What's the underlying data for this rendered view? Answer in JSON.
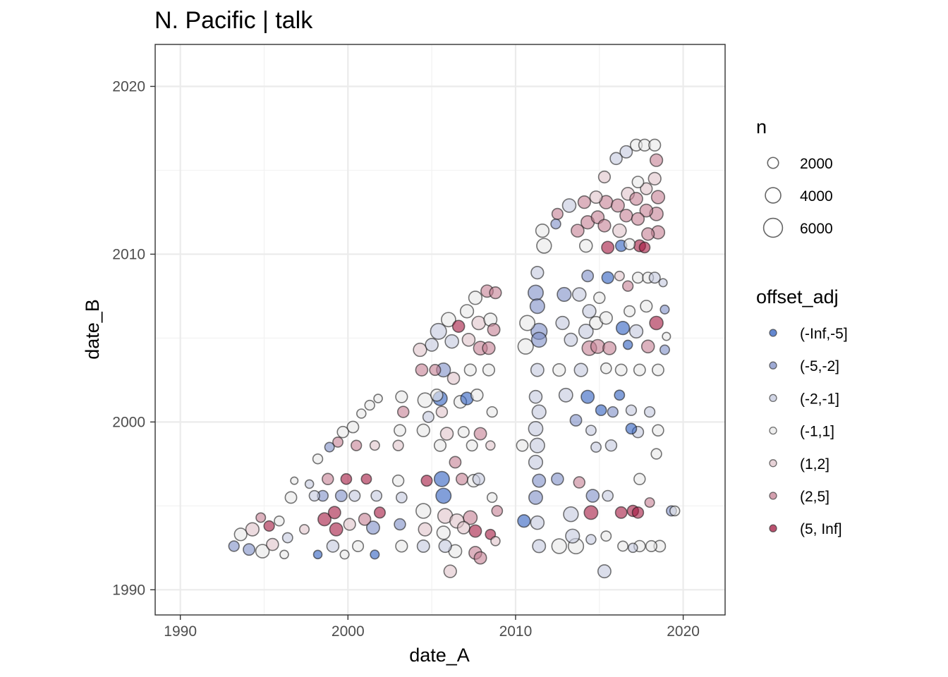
{
  "chart_data": {
    "type": "scatter",
    "title": "N. Pacific | talk",
    "xlabel": "date_A",
    "ylabel": "date_B",
    "xlim": [
      1988.5,
      2022.5
    ],
    "ylim": [
      1988.5,
      2022.5
    ],
    "x_ticks": [
      1990,
      2000,
      2010,
      2020
    ],
    "y_ticks": [
      1990,
      2000,
      2010,
      2020
    ],
    "x_tick_labels": [
      "1990",
      "2000",
      "2010",
      "2020"
    ],
    "y_tick_labels": [
      "1990",
      "2000",
      "2010",
      "2020"
    ],
    "grid": true,
    "legend_position": "right",
    "size_legend": {
      "title": "n",
      "labels": [
        "2000",
        "4000",
        "6000"
      ],
      "values": [
        2000,
        4000,
        6000
      ]
    },
    "color_legend": {
      "title": "offset_adj",
      "labels": [
        "(-Inf,-5]",
        "(-5,-2]",
        "(-2,-1]",
        "(-1,1]",
        "(1,2]",
        "(2,5]",
        "(5, Inf]"
      ],
      "colors": [
        "#2f5fbf",
        "#7d8ec6",
        "#c3c8de",
        "#e8e8e8",
        "#dfc3ca",
        "#c47f93",
        "#a3173f"
      ]
    },
    "points": [
      [
        1993.2,
        1992.6,
        1,
        1800
      ],
      [
        1993.6,
        1993.3,
        3,
        2600
      ],
      [
        1994.1,
        1992.4,
        1,
        2200
      ],
      [
        1994.3,
        1993.6,
        4,
        2900
      ],
      [
        1994.8,
        1994.3,
        5,
        1500
      ],
      [
        1994.9,
        1992.3,
        3,
        3000
      ],
      [
        1995.3,
        1993.8,
        6,
        1800
      ],
      [
        1995.5,
        1992.7,
        4,
        2400
      ],
      [
        1995.9,
        1994.1,
        3,
        1600
      ],
      [
        1996.2,
        1992.1,
        3,
        1200
      ],
      [
        1996.4,
        1993.1,
        2,
        1700
      ],
      [
        1996.6,
        1995.5,
        3,
        2200
      ],
      [
        1996.8,
        1996.5,
        3,
        900
      ],
      [
        1997.4,
        1993.6,
        4,
        1500
      ],
      [
        1997.7,
        1996.3,
        2,
        1200
      ],
      [
        1998.0,
        1995.6,
        2,
        1800
      ],
      [
        1998.2,
        1992.1,
        0,
        1200
      ],
      [
        1998.5,
        1995.6,
        1,
        1900
      ],
      [
        1998.8,
        1996.6,
        5,
        2100
      ],
      [
        1998.6,
        1994.2,
        6,
        2800
      ],
      [
        1998.2,
        1997.8,
        3,
        1600
      ],
      [
        1998.9,
        1998.5,
        1,
        1500
      ],
      [
        1999.2,
        1994.6,
        6,
        2500
      ],
      [
        1999.3,
        1993.6,
        6,
        2800
      ],
      [
        1999.1,
        1992.6,
        2,
        2400
      ],
      [
        1999.4,
        1998.8,
        5,
        1700
      ],
      [
        1999.7,
        1999.4,
        3,
        2100
      ],
      [
        1999.9,
        1996.6,
        6,
        1900
      ],
      [
        1999.6,
        1995.6,
        1,
        2200
      ],
      [
        1999.8,
        1992.1,
        3,
        1300
      ],
      [
        2000.1,
        1993.9,
        4,
        2300
      ],
      [
        2000.3,
        1999.7,
        3,
        2200
      ],
      [
        2000.5,
        1998.6,
        5,
        1800
      ],
      [
        2000.4,
        1995.6,
        2,
        2000
      ],
      [
        2000.6,
        1992.6,
        3,
        2000
      ],
      [
        2000.8,
        2000.5,
        3,
        1400
      ],
      [
        2001.0,
        1994.2,
        5,
        2400
      ],
      [
        2001.1,
        1996.6,
        6,
        1700
      ],
      [
        2001.3,
        2001.0,
        3,
        1600
      ],
      [
        2001.5,
        1993.7,
        1,
        2800
      ],
      [
        2001.6,
        1992.1,
        0,
        1300
      ],
      [
        2001.7,
        1995.6,
        2,
        1900
      ],
      [
        2001.6,
        1998.6,
        4,
        1500
      ],
      [
        2001.8,
        2001.4,
        3,
        1200
      ],
      [
        2001.9,
        1994.6,
        6,
        2000
      ],
      [
        2003.1,
        1999.5,
        3,
        2200
      ],
      [
        2003.2,
        2001.5,
        3,
        2300
      ],
      [
        2003.0,
        1998.6,
        4,
        1800
      ],
      [
        2003.1,
        1993.9,
        1,
        2100
      ],
      [
        2003.2,
        1992.6,
        3,
        2300
      ],
      [
        2003.0,
        1996.5,
        3,
        2100
      ],
      [
        2003.2,
        1995.5,
        2,
        1900
      ],
      [
        2003.3,
        2000.6,
        5,
        2100
      ],
      [
        2004.3,
        2004.3,
        4,
        2900
      ],
      [
        2004.4,
        2003.1,
        5,
        2400
      ],
      [
        2004.6,
        2001.3,
        3,
        3500
      ],
      [
        2004.5,
        1999.5,
        3,
        2600
      ],
      [
        2004.7,
        1996.5,
        6,
        2000
      ],
      [
        2004.5,
        1994.7,
        3,
        3600
      ],
      [
        2004.6,
        1993.6,
        4,
        2900
      ],
      [
        2004.5,
        1992.6,
        2,
        2500
      ],
      [
        2004.8,
        2000.3,
        2,
        2000
      ],
      [
        2005.0,
        2004.6,
        2,
        2700
      ],
      [
        2005.2,
        2003.1,
        5,
        2000
      ],
      [
        2005.3,
        2001.6,
        3,
        2400
      ],
      [
        2005.6,
        2000.6,
        4,
        2100
      ],
      [
        2005.5,
        1998.6,
        3,
        2300
      ],
      [
        2005.7,
        1995.6,
        0,
        3800
      ],
      [
        2005.6,
        1996.6,
        0,
        3800
      ],
      [
        2005.8,
        1994.4,
        4,
        3600
      ],
      [
        2005.7,
        1993.4,
        3,
        2900
      ],
      [
        2005.8,
        1992.6,
        2,
        2600
      ],
      [
        2005.4,
        2005.4,
        2,
        4200
      ],
      [
        2005.7,
        2003.1,
        1,
        3200
      ],
      [
        2005.5,
        2001.4,
        0,
        3300
      ],
      [
        2005.9,
        1999.3,
        4,
        2700
      ],
      [
        2006.0,
        2006.1,
        3,
        3400
      ],
      [
        2006.2,
        2004.8,
        2,
        3000
      ],
      [
        2006.3,
        2002.6,
        4,
        2400
      ],
      [
        2006.1,
        1991.1,
        4,
        2600
      ],
      [
        2006.4,
        1997.6,
        5,
        2200
      ],
      [
        2006.5,
        1994.1,
        4,
        3300
      ],
      [
        2006.4,
        1992.3,
        3,
        2800
      ],
      [
        2006.6,
        2005.7,
        6,
        2400
      ],
      [
        2006.7,
        2001.2,
        3,
        2600
      ],
      [
        2006.9,
        1999.4,
        3,
        2000
      ],
      [
        2006.8,
        1996.6,
        5,
        2200
      ],
      [
        2006.9,
        1993.7,
        4,
        2500
      ],
      [
        2007.1,
        2006.6,
        3,
        2900
      ],
      [
        2007.2,
        2004.9,
        4,
        2700
      ],
      [
        2007.3,
        2003.1,
        3,
        2300
      ],
      [
        2007.1,
        2001.4,
        0,
        2600
      ],
      [
        2007.4,
        1998.6,
        3,
        2000
      ],
      [
        2007.5,
        1996.5,
        3,
        2600
      ],
      [
        2007.3,
        1994.3,
        5,
        3100
      ],
      [
        2007.6,
        1992.2,
        5,
        2700
      ],
      [
        2007.6,
        2007.4,
        3,
        2900
      ],
      [
        2007.8,
        2005.9,
        4,
        3000
      ],
      [
        2007.9,
        2004.4,
        5,
        3100
      ],
      [
        2007.7,
        2001.6,
        3,
        2400
      ],
      [
        2007.9,
        1999.3,
        5,
        2500
      ],
      [
        2007.8,
        1996.6,
        2,
        2300
      ],
      [
        2007.6,
        1993.5,
        6,
        2500
      ],
      [
        2007.9,
        1991.9,
        5,
        2500
      ],
      [
        2008.3,
        2007.8,
        5,
        2500
      ],
      [
        2008.5,
        2006.1,
        3,
        2800
      ],
      [
        2008.4,
        2004.4,
        5,
        2600
      ],
      [
        2008.4,
        2003.1,
        3,
        2300
      ],
      [
        2008.6,
        2000.6,
        3,
        1800
      ],
      [
        2008.5,
        1998.6,
        4,
        1400
      ],
      [
        2008.6,
        1995.5,
        3,
        1600
      ],
      [
        2008.5,
        1993.3,
        6,
        1700
      ],
      [
        2008.8,
        1992.9,
        4,
        1400
      ],
      [
        2008.9,
        1994.7,
        5,
        1900
      ],
      [
        2008.8,
        2007.7,
        5,
        2300
      ],
      [
        2008.7,
        2005.5,
        5,
        2500
      ],
      [
        2010.4,
        1998.6,
        3,
        2200
      ],
      [
        2010.5,
        1994.1,
        0,
        2600
      ],
      [
        2010.7,
        2005.9,
        3,
        3800
      ],
      [
        2010.6,
        2004.5,
        3,
        3900
      ],
      [
        2011.3,
        2008.9,
        2,
        2600
      ],
      [
        2011.2,
        2007.7,
        1,
        3800
      ],
      [
        2011.3,
        2006.9,
        1,
        3500
      ],
      [
        2011.4,
        2005.4,
        1,
        4300
      ],
      [
        2011.4,
        2004.9,
        1,
        3700
      ],
      [
        2011.3,
        2003.1,
        2,
        2800
      ],
      [
        2011.2,
        2001.5,
        2,
        2700
      ],
      [
        2011.4,
        2000.6,
        2,
        3200
      ],
      [
        2011.2,
        1999.6,
        2,
        3400
      ],
      [
        2011.3,
        1998.6,
        2,
        3500
      ],
      [
        2011.2,
        1997.6,
        2,
        3200
      ],
      [
        2011.4,
        1996.5,
        1,
        2800
      ],
      [
        2011.2,
        1995.5,
        1,
        3100
      ],
      [
        2011.3,
        1994.0,
        2,
        3000
      ],
      [
        2011.4,
        1992.6,
        2,
        2800
      ],
      [
        2011.6,
        2011.4,
        3,
        2900
      ],
      [
        2011.7,
        2010.5,
        3,
        3600
      ],
      [
        2012.4,
        2011.8,
        1,
        1600
      ],
      [
        2012.5,
        2012.4,
        5,
        2000
      ],
      [
        2012.6,
        2003.1,
        3,
        2600
      ],
      [
        2012.5,
        1996.6,
        1,
        2400
      ],
      [
        2012.6,
        1992.6,
        3,
        3600
      ],
      [
        2012.9,
        2007.6,
        1,
        3200
      ],
      [
        2012.8,
        2005.9,
        2,
        2900
      ],
      [
        2013.0,
        2001.6,
        2,
        3100
      ],
      [
        2013.2,
        2012.9,
        2,
        3000
      ],
      [
        2013.3,
        2004.9,
        2,
        2800
      ],
      [
        2013.3,
        1994.5,
        2,
        3600
      ],
      [
        2013.4,
        1993.2,
        2,
        3200
      ],
      [
        2013.6,
        1992.6,
        3,
        3900
      ],
      [
        2013.7,
        2011.4,
        5,
        2700
      ],
      [
        2013.8,
        2007.6,
        2,
        3000
      ],
      [
        2013.9,
        2003.1,
        2,
        2900
      ],
      [
        2013.6,
        2000.1,
        1,
        2200
      ],
      [
        2013.8,
        1996.4,
        5,
        2100
      ],
      [
        2014.1,
        2013.1,
        5,
        2600
      ],
      [
        2014.3,
        2011.9,
        5,
        2900
      ],
      [
        2014.2,
        2010.5,
        3,
        2700
      ],
      [
        2014.3,
        2008.7,
        1,
        2200
      ],
      [
        2014.4,
        2006.6,
        2,
        2900
      ],
      [
        2014.2,
        2005.4,
        2,
        3400
      ],
      [
        2014.4,
        2004.4,
        5,
        3500
      ],
      [
        2014.3,
        2001.5,
        0,
        2800
      ],
      [
        2014.5,
        1999.5,
        2,
        1700
      ],
      [
        2014.6,
        1995.6,
        1,
        2700
      ],
      [
        2014.5,
        1994.6,
        6,
        3100
      ],
      [
        2014.5,
        1993.0,
        2,
        1600
      ],
      [
        2014.8,
        2013.4,
        4,
        2500
      ],
      [
        2014.9,
        2012.2,
        5,
        2700
      ],
      [
        2014.8,
        2005.9,
        3,
        2800
      ],
      [
        2014.9,
        2004.5,
        5,
        3200
      ],
      [
        2014.8,
        1998.5,
        2,
        1700
      ],
      [
        2015.0,
        2007.4,
        3,
        2100
      ],
      [
        2015.1,
        2000.7,
        0,
        1900
      ],
      [
        2015.3,
        2014.6,
        4,
        2300
      ],
      [
        2015.4,
        2013.1,
        5,
        2900
      ],
      [
        2015.3,
        2011.7,
        5,
        2600
      ],
      [
        2015.5,
        2010.4,
        6,
        2500
      ],
      [
        2015.5,
        2008.6,
        0,
        2300
      ],
      [
        2015.4,
        2006.2,
        3,
        2600
      ],
      [
        2015.6,
        2004.4,
        5,
        2800
      ],
      [
        2015.4,
        2003.2,
        3,
        1900
      ],
      [
        2015.5,
        1995.6,
        2,
        1900
      ],
      [
        2015.4,
        1993.2,
        3,
        1700
      ],
      [
        2015.3,
        1991.1,
        2,
        2800
      ],
      [
        2015.7,
        1998.6,
        2,
        2100
      ],
      [
        2015.8,
        2000.6,
        1,
        1800
      ],
      [
        2016.0,
        2015.7,
        2,
        2400
      ],
      [
        2016.1,
        2012.9,
        5,
        2800
      ],
      [
        2016.2,
        2011.4,
        4,
        3000
      ],
      [
        2016.3,
        2010.5,
        0,
        2100
      ],
      [
        2016.2,
        2008.7,
        4,
        1500
      ],
      [
        2016.4,
        2005.6,
        0,
        2900
      ],
      [
        2016.3,
        2003.1,
        3,
        2200
      ],
      [
        2016.2,
        2001.6,
        0,
        1700
      ],
      [
        2016.3,
        1994.6,
        6,
        2200
      ],
      [
        2016.4,
        1992.6,
        3,
        1700
      ],
      [
        2016.6,
        2016.1,
        2,
        2500
      ],
      [
        2016.7,
        2013.6,
        4,
        2700
      ],
      [
        2016.6,
        2012.3,
        5,
        2600
      ],
      [
        2016.8,
        2010.6,
        3,
        2000
      ],
      [
        2016.7,
        2008.1,
        5,
        1800
      ],
      [
        2016.8,
        2006.6,
        3,
        2000
      ],
      [
        2016.7,
        2004.6,
        0,
        1400
      ],
      [
        2016.9,
        2000.7,
        2,
        1800
      ],
      [
        2016.9,
        1999.6,
        0,
        1900
      ],
      [
        2017.0,
        1994.7,
        6,
        2100
      ],
      [
        2017.0,
        1992.5,
        2,
        1400
      ],
      [
        2017.2,
        2016.5,
        3,
        2300
      ],
      [
        2017.3,
        2014.3,
        3,
        2200
      ],
      [
        2017.2,
        2013.3,
        5,
        2700
      ],
      [
        2017.3,
        2012.1,
        5,
        2600
      ],
      [
        2017.4,
        2010.5,
        6,
        2300
      ],
      [
        2017.3,
        2008.6,
        3,
        2000
      ],
      [
        2017.2,
        2005.4,
        2,
        2900
      ],
      [
        2017.4,
        2003.1,
        3,
        2200
      ],
      [
        2017.3,
        1999.4,
        2,
        2100
      ],
      [
        2017.4,
        1996.6,
        3,
        2100
      ],
      [
        2017.3,
        1994.6,
        6,
        2100
      ],
      [
        2017.4,
        1992.6,
        3,
        2100
      ],
      [
        2017.7,
        2016.5,
        3,
        2300
      ],
      [
        2017.8,
        2013.9,
        4,
        2300
      ],
      [
        2017.8,
        2012.6,
        5,
        2700
      ],
      [
        2017.9,
        2011.2,
        5,
        2600
      ],
      [
        2017.7,
        2010.4,
        6,
        1900
      ],
      [
        2017.9,
        2008.6,
        3,
        2000
      ],
      [
        2017.8,
        2006.9,
        3,
        2300
      ],
      [
        2017.9,
        2004.5,
        5,
        2700
      ],
      [
        2018.0,
        2000.6,
        2,
        1800
      ],
      [
        2018.0,
        1995.2,
        5,
        1500
      ],
      [
        2018.1,
        1992.6,
        3,
        2000
      ],
      [
        2018.3,
        2016.5,
        3,
        2300
      ],
      [
        2018.4,
        2015.6,
        5,
        2600
      ],
      [
        2018.3,
        2014.5,
        4,
        2600
      ],
      [
        2018.5,
        2013.4,
        5,
        2900
      ],
      [
        2018.4,
        2012.4,
        5,
        3000
      ],
      [
        2018.5,
        2011.3,
        5,
        2900
      ],
      [
        2018.3,
        2008.6,
        2,
        2000
      ],
      [
        2018.4,
        2005.9,
        6,
        3000
      ],
      [
        2018.5,
        2003.1,
        3,
        2200
      ],
      [
        2018.5,
        1999.5,
        3,
        2100
      ],
      [
        2018.4,
        1998.1,
        3,
        1800
      ],
      [
        2018.6,
        1992.6,
        3,
        2200
      ],
      [
        2018.8,
        2008.3,
        2,
        1100
      ],
      [
        2018.9,
        2006.7,
        1,
        1300
      ],
      [
        2018.9,
        2004.3,
        1,
        1500
      ],
      [
        2019.0,
        2005.1,
        3,
        1100
      ],
      [
        2019.3,
        1994.7,
        1,
        1700
      ],
      [
        2019.5,
        1994.7,
        3,
        1600
      ]
    ]
  }
}
